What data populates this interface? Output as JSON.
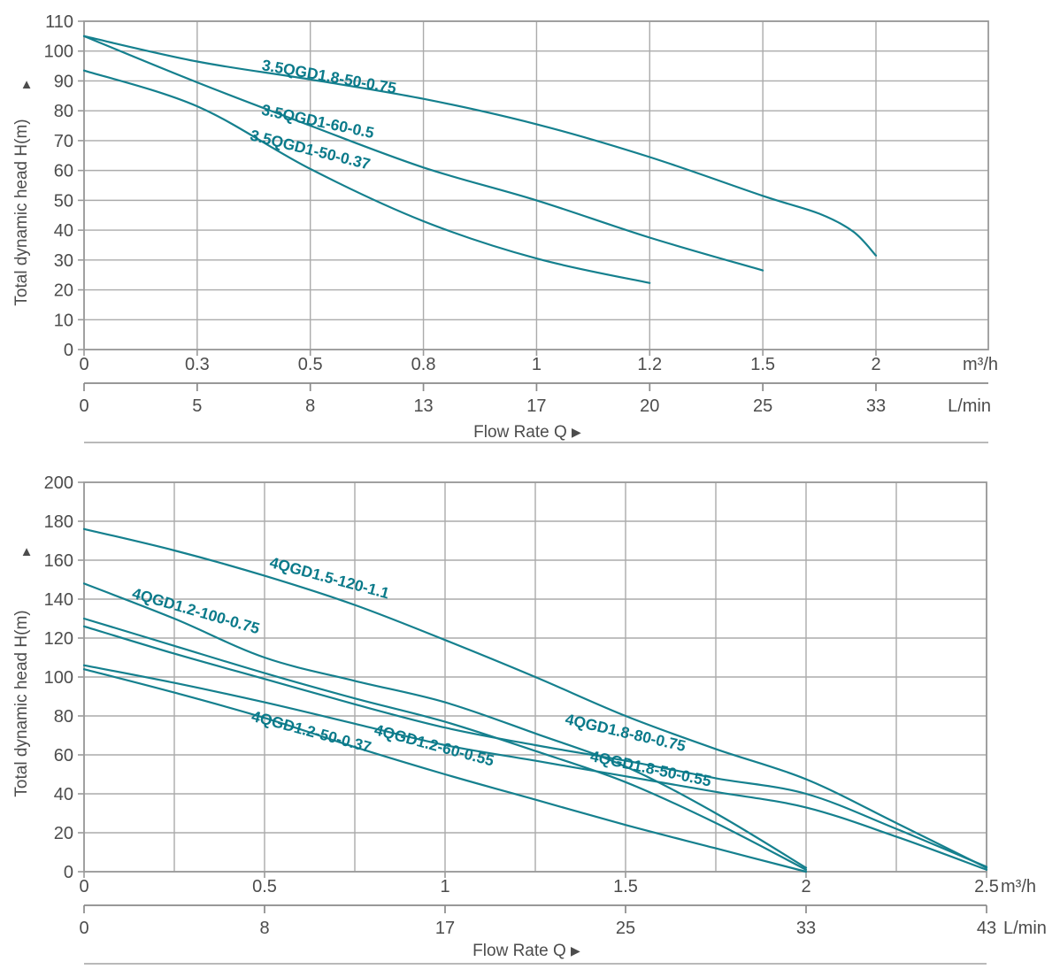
{
  "figure": {
    "name": "submersible-pump-performance-curves",
    "flow_label": "Flow Rate Q",
    "flow_arrow": "▶",
    "y_axis_arrow": "▲"
  },
  "colors": {
    "curve": "#15808e",
    "series_label": "#0a7a8a",
    "grid": "#ababab",
    "border": "#9a9a9a",
    "axis_text": "#4c4c4c",
    "secondary_axis_line": "#8a8a8a",
    "divider": "#8f8f8f",
    "background": "#ffffff"
  },
  "chart_data": [
    {
      "type": "line",
      "title": "",
      "ylabel": "Total dynamic head H(m)",
      "xlabel": "Flow Rate Q",
      "ylim": [
        0,
        110
      ],
      "ytick_step": 10,
      "ytick_labels": [
        "0",
        "10",
        "20",
        "30",
        "40",
        "50",
        "60",
        "70",
        "80",
        "90",
        "100",
        "110"
      ],
      "grid": "on",
      "x_primary": {
        "unit": "m³/h",
        "ticks": [
          0,
          0.3,
          0.5,
          0.8,
          1,
          1.2,
          1.5,
          2
        ],
        "tick_labels": [
          "0",
          "0.3",
          "0.5",
          "0.8",
          "1",
          "1.2",
          "1.5",
          "2"
        ]
      },
      "x_secondary": {
        "unit": "L/min",
        "tick_labels": [
          "0",
          "5",
          "8",
          "13",
          "17",
          "20",
          "25",
          "33"
        ]
      },
      "series": [
        {
          "name": "3.5QGD1.8-50-0.75",
          "points": [
            [
              0,
              105
            ],
            [
              0.3,
              96.5
            ],
            [
              0.5,
              90.5
            ],
            [
              0.8,
              84
            ],
            [
              1,
              75.5
            ],
            [
              1.2,
              64.5
            ],
            [
              1.5,
              51.5
            ],
            [
              1.75,
              45.5
            ],
            [
              1.9,
              39.5
            ],
            [
              2,
              31.5
            ]
          ],
          "label": {
            "q": 0.55,
            "h": 91.5,
            "angle": 10
          }
        },
        {
          "name": "3.5QGD1-60-0.5",
          "points": [
            [
              0,
              105
            ],
            [
              0.3,
              89.5
            ],
            [
              0.5,
              75
            ],
            [
              0.8,
              61
            ],
            [
              1,
              50
            ],
            [
              1.2,
              37.5
            ],
            [
              1.5,
              26.5
            ]
          ],
          "label": {
            "q": 0.52,
            "h": 76.5,
            "angle": 12
          }
        },
        {
          "name": "3.5QGD1-50-0.37",
          "points": [
            [
              0,
              93.5
            ],
            [
              0.3,
              81.5
            ],
            [
              0.5,
              60.5
            ],
            [
              0.8,
              43
            ],
            [
              1,
              30.5
            ],
            [
              1.2,
              22.3
            ]
          ],
          "label": {
            "q": 0.5,
            "h": 67,
            "angle": 14
          }
        }
      ]
    },
    {
      "type": "line",
      "title": "",
      "ylabel": "Total dynamic head H(m)",
      "xlabel": "Flow Rate Q",
      "ylim": [
        0,
        200
      ],
      "ytick_step": 20,
      "ytick_labels": [
        "0",
        "20",
        "40",
        "60",
        "80",
        "100",
        "120",
        "140",
        "160",
        "180",
        "200"
      ],
      "grid": "on",
      "x_primary": {
        "unit": "m³/h",
        "ticks": [
          0,
          0.25,
          0.5,
          0.75,
          1,
          1.25,
          1.5,
          1.75,
          2,
          2.25,
          2.5
        ],
        "tick_labels": [
          "0",
          "",
          "0.5",
          "",
          "1",
          "",
          "1.5",
          "",
          "2",
          "",
          "2.5"
        ]
      },
      "x_secondary": {
        "unit": "L/min",
        "tick_labels": [
          "0",
          "",
          "8",
          "",
          "17",
          "",
          "25",
          "",
          "33",
          "",
          "43"
        ]
      },
      "series": [
        {
          "name": "4QGD1.5-120-1.1",
          "points": [
            [
              0,
              176
            ],
            [
              0.25,
              165
            ],
            [
              0.5,
              152
            ],
            [
              0.75,
              137
            ],
            [
              1,
              119
            ],
            [
              1.25,
              100
            ],
            [
              1.5,
              80
            ],
            [
              1.75,
              63
            ],
            [
              2,
              47.5
            ],
            [
              2.25,
              25
            ],
            [
              2.5,
              2
            ]
          ],
          "label": {
            "q": 0.68,
            "h": 151,
            "angle": 15
          }
        },
        {
          "name": "4QGD1.2-100-0.75",
          "points": [
            [
              0,
              148
            ],
            [
              0.25,
              130
            ],
            [
              0.5,
              110
            ],
            [
              0.75,
              98
            ],
            [
              1,
              87
            ],
            [
              1.25,
              71
            ],
            [
              1.5,
              54
            ],
            [
              1.75,
              30
            ],
            [
              2,
              2
            ]
          ],
          "label": {
            "q": 0.31,
            "h": 134,
            "angle": 16
          }
        },
        {
          "name": "4QGD1.2-60-0.55",
          "points": [
            [
              0,
              130
            ],
            [
              0.25,
              116
            ],
            [
              0.5,
              102
            ],
            [
              0.75,
              89
            ],
            [
              1,
              77
            ],
            [
              1.25,
              62
            ],
            [
              1.5,
              46
            ],
            [
              1.75,
              25
            ],
            [
              2,
              1
            ]
          ],
          "label": {
            "q": 0.97,
            "h": 65,
            "angle": 15
          }
        },
        {
          "name": "4QGD1.8-80-0.75",
          "points": [
            [
              0,
              126
            ],
            [
              0.25,
              112
            ],
            [
              0.5,
              99
            ],
            [
              0.75,
              86
            ],
            [
              1,
              74
            ],
            [
              1.25,
              65
            ],
            [
              1.5,
              57
            ],
            [
              1.75,
              48
            ],
            [
              2,
              40
            ],
            [
              2.25,
              22
            ],
            [
              2.5,
              2.5
            ]
          ],
          "label": {
            "q": 1.5,
            "h": 71.5,
            "angle": 13
          }
        },
        {
          "name": "4QGD1.8-50-0.55",
          "points": [
            [
              0,
              106
            ],
            [
              0.25,
              97
            ],
            [
              0.5,
              87
            ],
            [
              0.75,
              76
            ],
            [
              1,
              65
            ],
            [
              1.25,
              57
            ],
            [
              1.5,
              49
            ],
            [
              1.75,
              41
            ],
            [
              2,
              33
            ],
            [
              2.25,
              18
            ],
            [
              2.5,
              1
            ]
          ],
          "label": {
            "q": 1.57,
            "h": 53,
            "angle": 12
          }
        },
        {
          "name": "4QGD1.2-50-0.37",
          "points": [
            [
              0,
              104
            ],
            [
              0.25,
              92
            ],
            [
              0.5,
              79
            ],
            [
              0.75,
              64
            ],
            [
              1,
              50
            ],
            [
              1.25,
              37
            ],
            [
              1.5,
              24
            ],
            [
              1.75,
              12
            ],
            [
              2,
              0
            ]
          ],
          "label": {
            "q": 0.63,
            "h": 72,
            "angle": 15
          }
        }
      ]
    }
  ]
}
